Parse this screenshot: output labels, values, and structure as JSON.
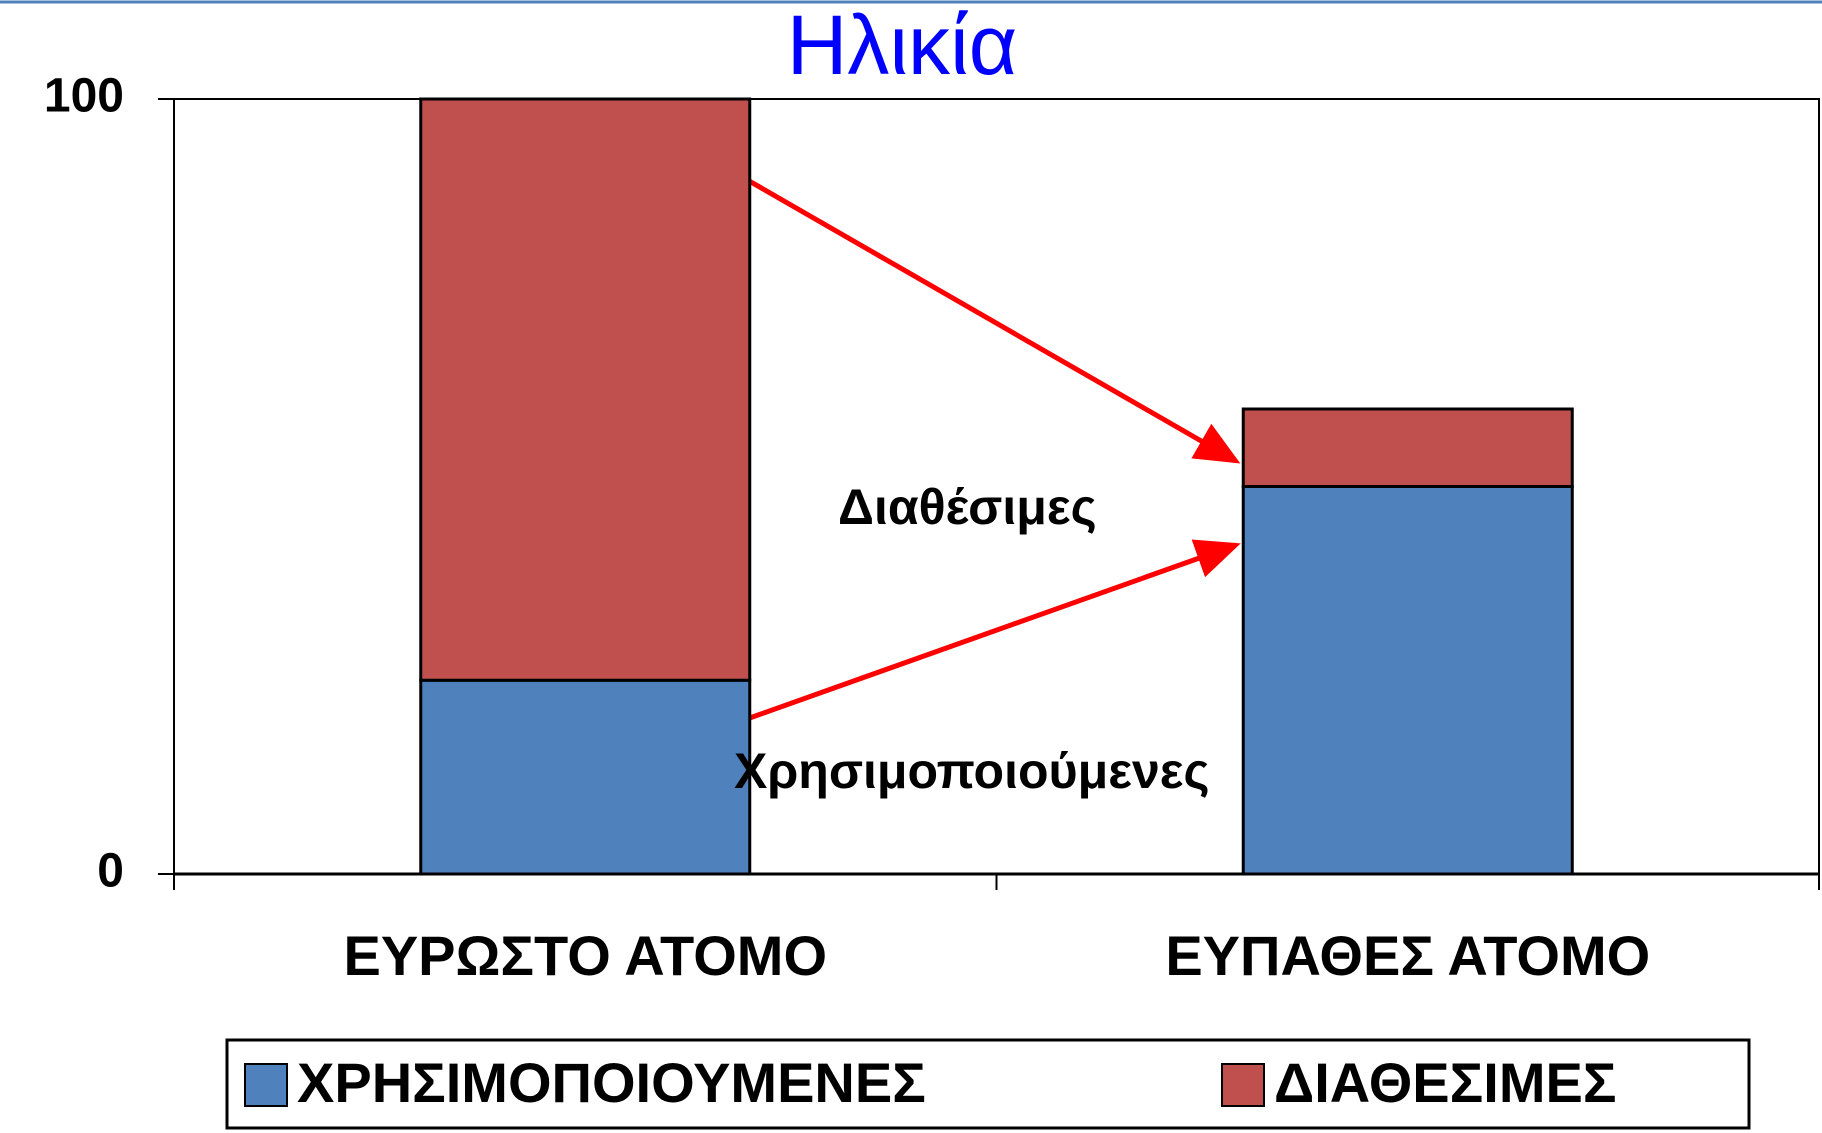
{
  "chart_data": {
    "type": "stacked_bar",
    "title": "Ηλικία",
    "categories": [
      "ΕΥΡΩΣΤΟ ΑΤΟΜΟ",
      "ΕΥΠΑΘΕΣ ΑΤΟΜΟ"
    ],
    "series": [
      {
        "name": "ΧΡΗΣΙΜΟΠΟΙΟΥΜΕΝΕΣ",
        "color": "#4f81bd",
        "values": [
          25,
          50
        ]
      },
      {
        "name": "ΔΙΑΘΕΣΙΜΕΣ",
        "color": "#c0504d",
        "values": [
          75,
          10
        ]
      }
    ],
    "annotations": [
      "Διαθέσιμες",
      "Χρησιμοποιούμενες"
    ],
    "ylim": [
      0,
      100
    ],
    "yticks": [
      0,
      100
    ],
    "legend": "bottom"
  }
}
